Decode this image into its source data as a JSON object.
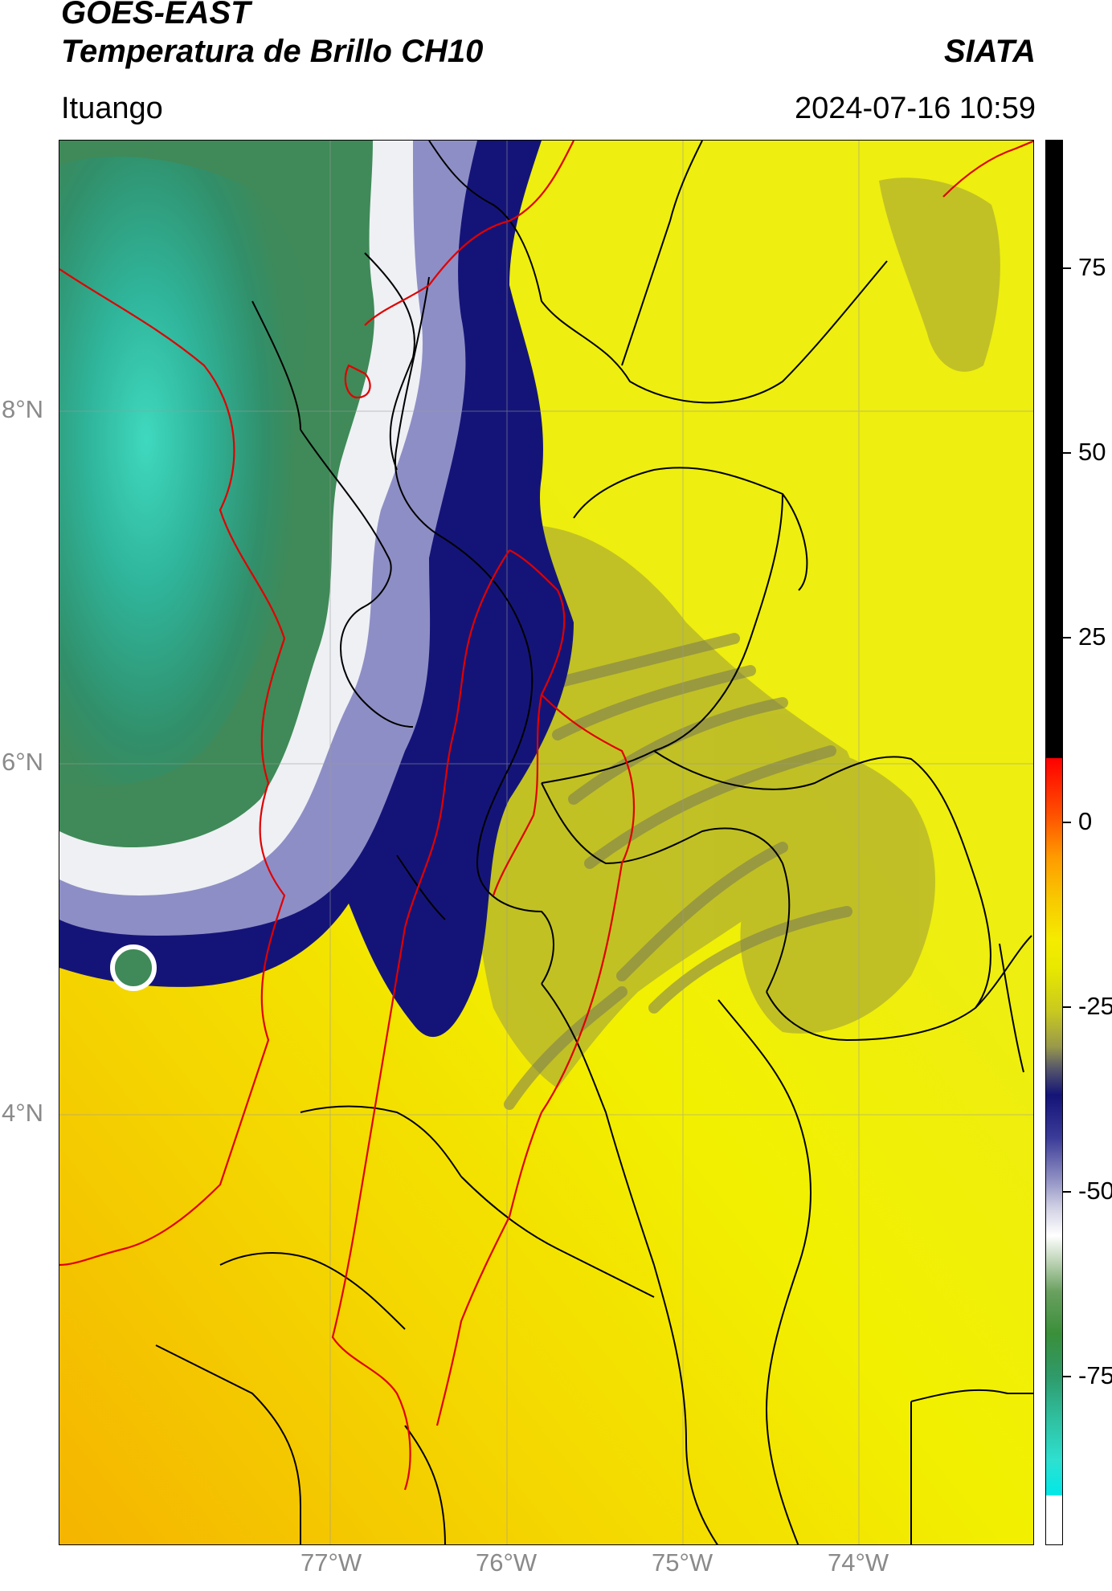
{
  "header": {
    "satellite": "GOES-EAST",
    "product": "Temperatura de Brillo CH10",
    "organization": "SIATA",
    "location": "Ituango",
    "datetime": "2024-07-16 10:59"
  },
  "map": {
    "latitude_labels": [
      "8°N",
      "6°N",
      "4°N"
    ],
    "longitude_labels": [
      "77°W",
      "76°W",
      "75°W",
      "74°W"
    ],
    "colors": {
      "warm_field": "#f2f200",
      "warm_orange": "#f5b800",
      "dark_olive": "#8a8a44",
      "navy": "#141478",
      "lavender": "#a8a8cc",
      "white_band": "#ffffff",
      "green": "#3e8f5c",
      "teal": "#30b89a",
      "borders_black": "#000000",
      "borders_red": "#e00000"
    }
  },
  "colorbar": {
    "tick_labels": [
      "75",
      "50",
      "25",
      "0",
      "-25",
      "-50",
      "-75"
    ],
    "tick_values": [
      75,
      50,
      25,
      0,
      -25,
      -50,
      -75
    ],
    "range": [
      -95,
      95
    ]
  }
}
